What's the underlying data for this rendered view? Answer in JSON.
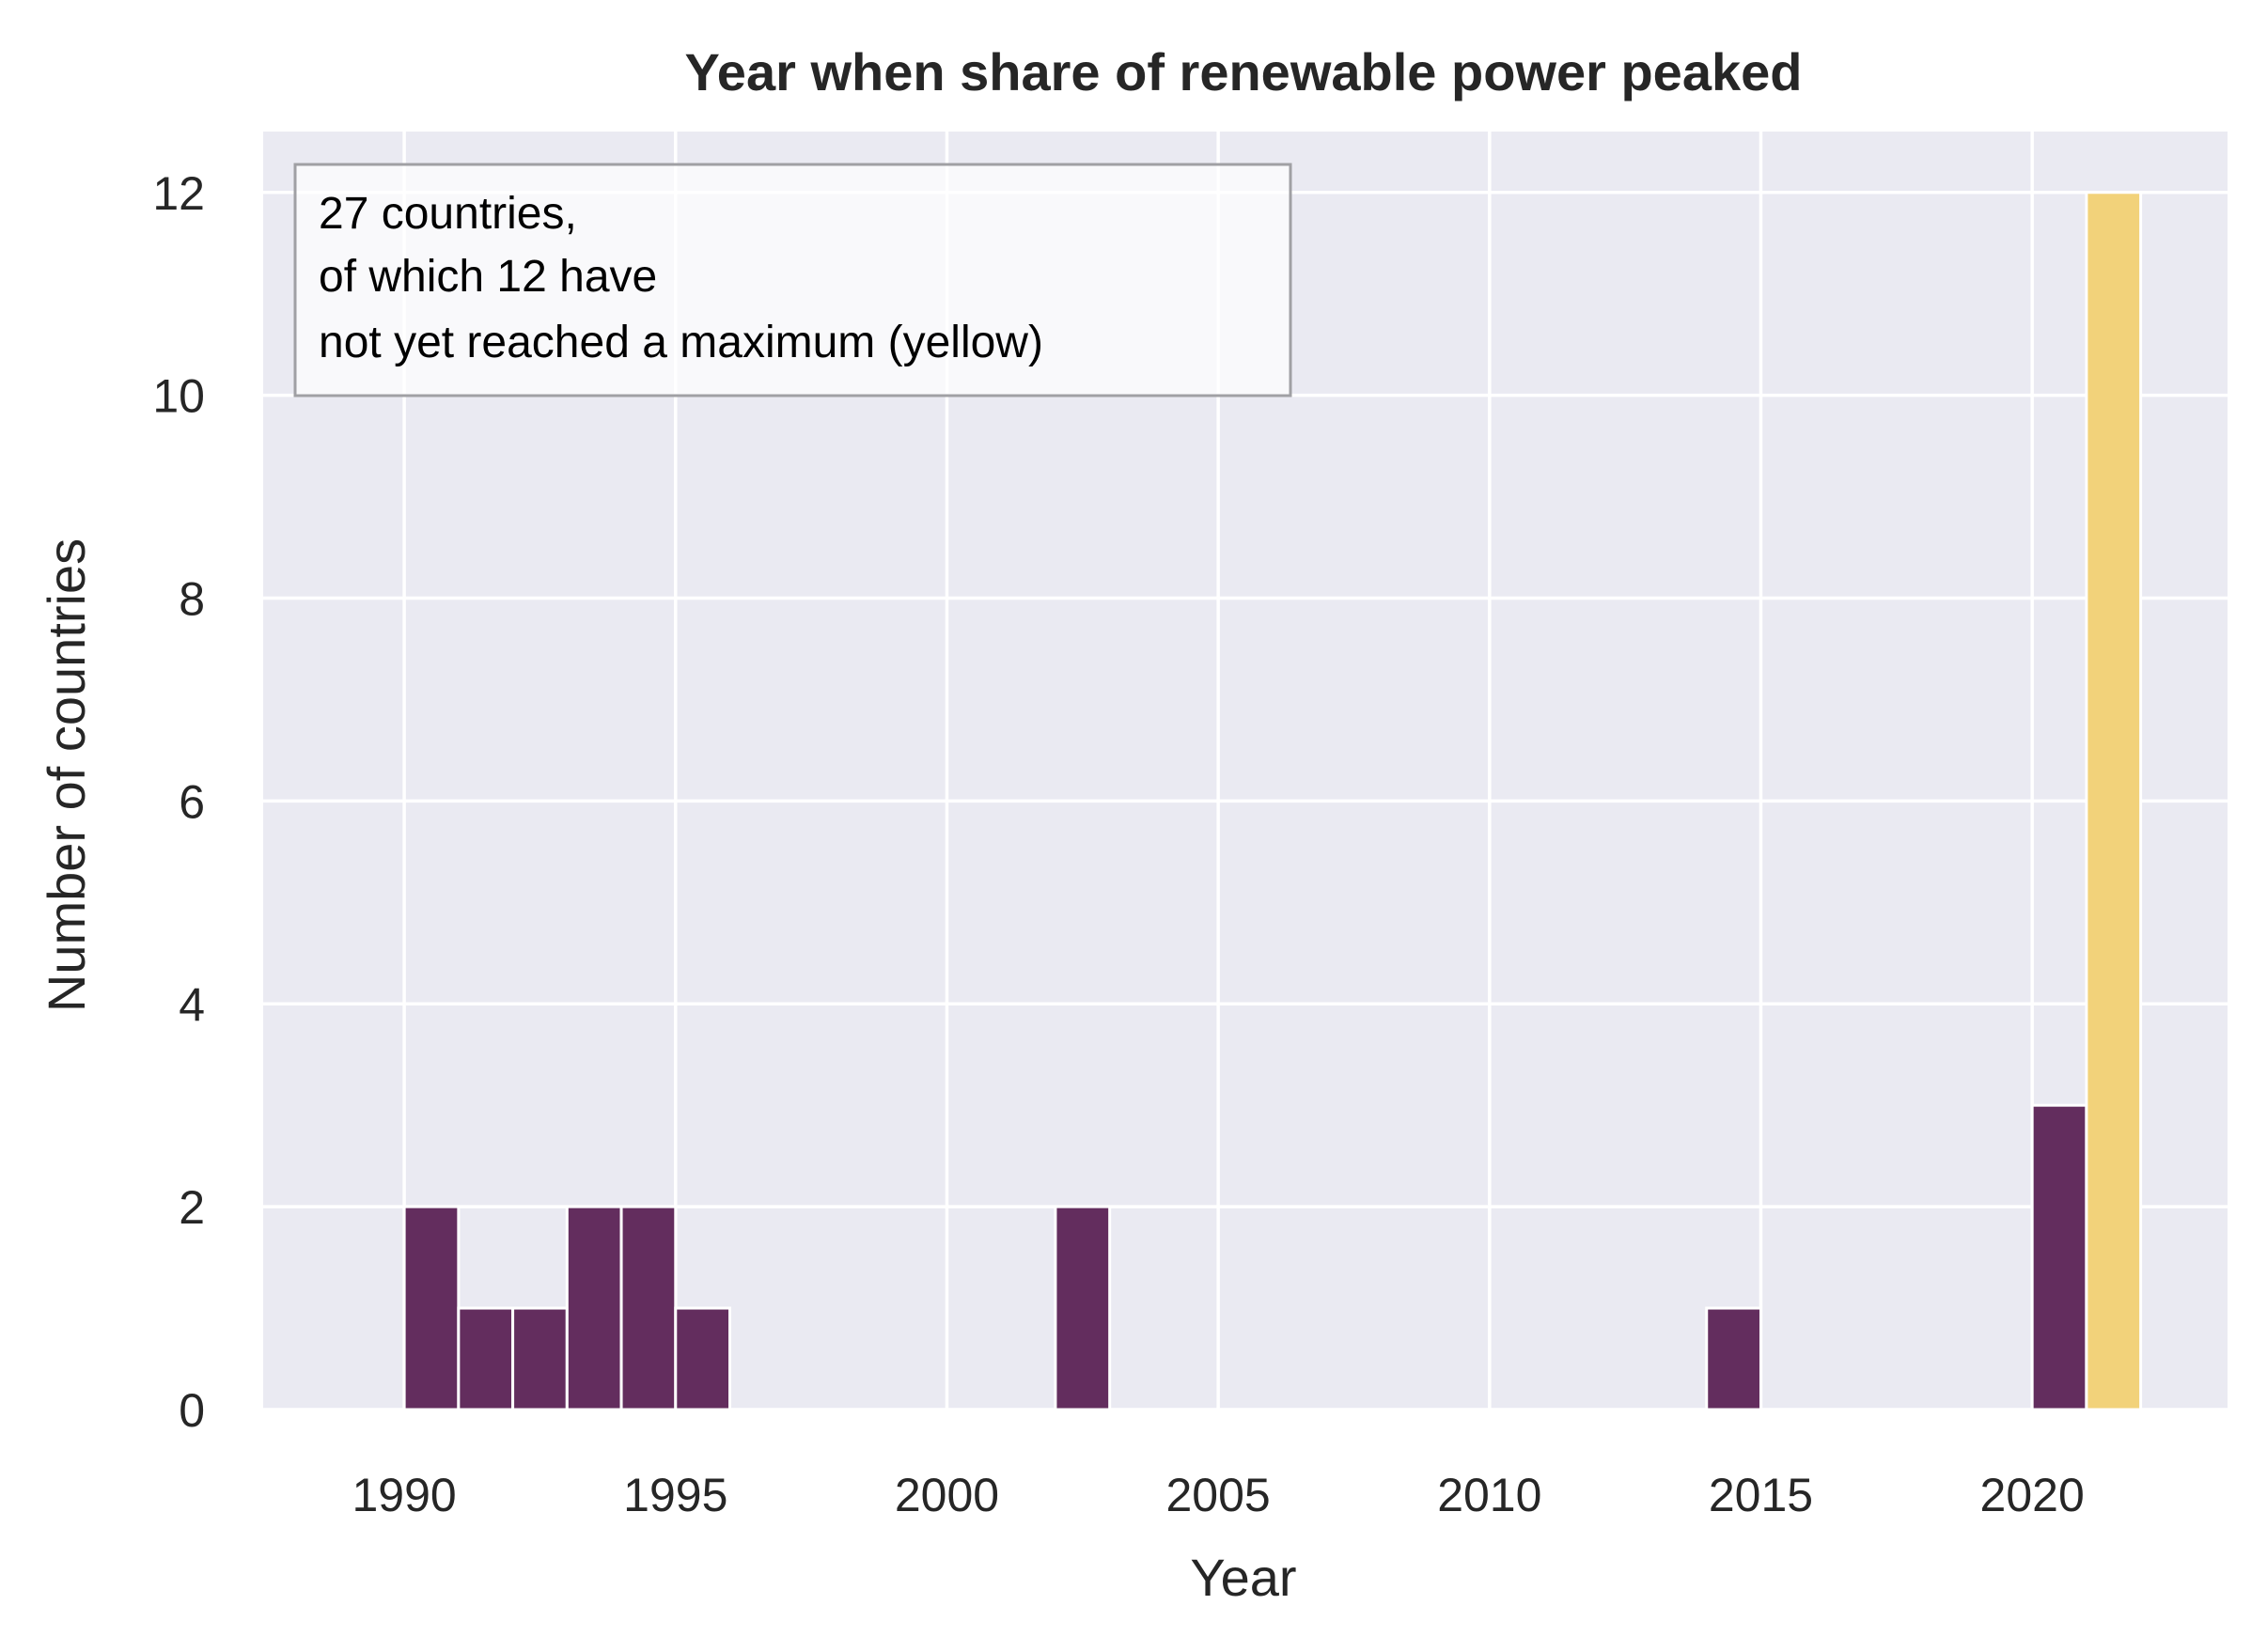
{
  "chart_data": {
    "type": "bar",
    "title": "Year when share of renewable power peaked",
    "xlabel": "Year",
    "ylabel": "Number of countries",
    "xlim": [
      1987.4,
      2023.6
    ],
    "ylim": [
      0,
      12.6
    ],
    "x_ticks": [
      1990,
      1995,
      2000,
      2005,
      2010,
      2015,
      2020
    ],
    "y_ticks": [
      0,
      2,
      4,
      6,
      8,
      10,
      12
    ],
    "grid": true,
    "bin_width": 1,
    "annotation_lines": [
      "27 countries,",
      "of which 12 have",
      "not yet reached a maximum (yellow)"
    ],
    "annotation_position": "top-left",
    "colors": {
      "background": "#eaeaf2",
      "grid": "#ffffff",
      "peaked": "#632d5e",
      "not_reached": "#f2d27a"
    },
    "series": [
      {
        "x": [
          1990,
          1991,
          1992,
          1993,
          1994,
          1995,
          2002,
          2014,
          2020
        ],
        "values": [
          2,
          1,
          1,
          2,
          2,
          1,
          2,
          1,
          3
        ],
        "color": "#632d5e"
      },
      {
        "x": [
          2021
        ],
        "values": [
          12
        ],
        "color": "#f2d27a"
      }
    ]
  }
}
